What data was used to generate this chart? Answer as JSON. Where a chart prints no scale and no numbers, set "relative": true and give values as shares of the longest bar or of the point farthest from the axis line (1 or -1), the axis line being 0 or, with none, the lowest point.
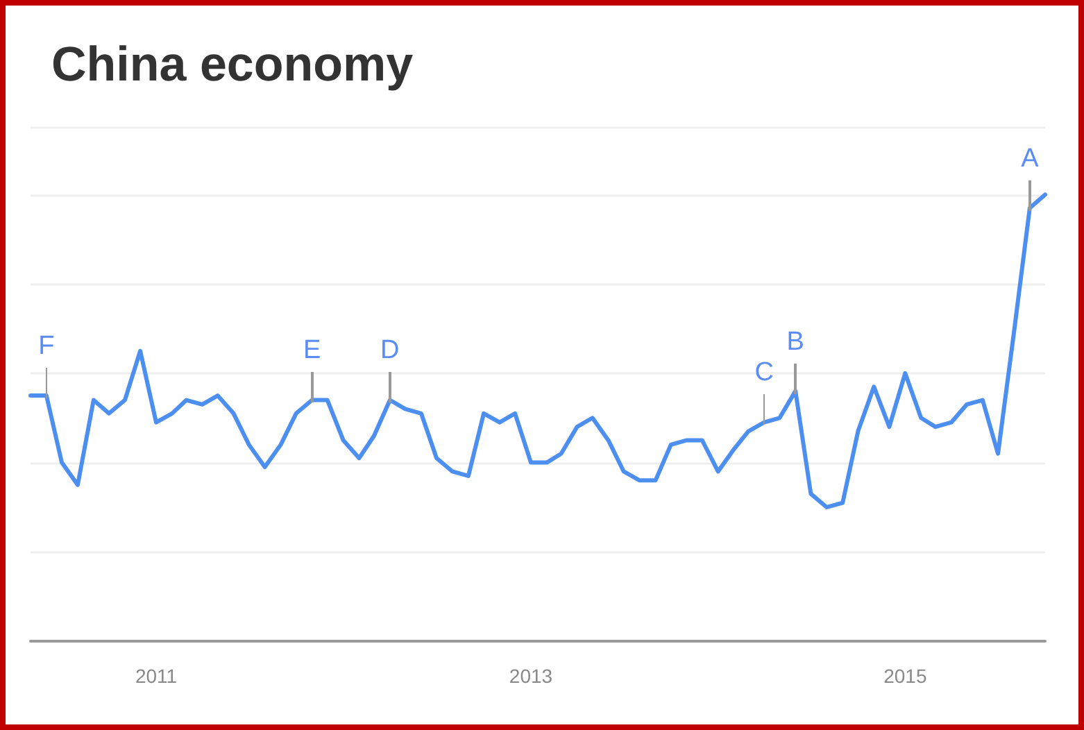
{
  "chart_data": {
    "type": "line",
    "title": "China economy",
    "relative": true,
    "grid": "y",
    "marker": "none",
    "line_style": "solid",
    "x": [
      "2010-05",
      "2010-06",
      "2010-07",
      "2010-08",
      "2010-09",
      "2010-10",
      "2010-11",
      "2010-12",
      "2011-01",
      "2011-02",
      "2011-03",
      "2011-04",
      "2011-05",
      "2011-06",
      "2011-07",
      "2011-08",
      "2011-09",
      "2011-10",
      "2011-11",
      "2011-12",
      "2012-01",
      "2012-02",
      "2012-03",
      "2012-04",
      "2012-05",
      "2012-06",
      "2012-07",
      "2012-08",
      "2012-09",
      "2012-10",
      "2012-11",
      "2012-12",
      "2013-01",
      "2013-02",
      "2013-03",
      "2013-04",
      "2013-05",
      "2013-06",
      "2013-07",
      "2013-08",
      "2013-09",
      "2013-10",
      "2013-11",
      "2013-12",
      "2014-01",
      "2014-02",
      "2014-03",
      "2014-04",
      "2014-05",
      "2014-06",
      "2014-07",
      "2014-08",
      "2014-09",
      "2014-10",
      "2014-11",
      "2014-12",
      "2015-01",
      "2015-02",
      "2015-03",
      "2015-04",
      "2015-05",
      "2015-06",
      "2015-07",
      "2015-08",
      "2015-09",
      "2015-10"
    ],
    "xlim": [
      "2010-05",
      "2015-10"
    ],
    "xticks": [
      "2011",
      "2013",
      "2015"
    ],
    "series": [
      {
        "color": "#4d8ff0",
        "values": [
          0.55,
          0.55,
          0.4,
          0.35,
          0.54,
          0.51,
          0.54,
          0.65,
          0.49,
          0.51,
          0.54,
          0.53,
          0.55,
          0.51,
          0.44,
          0.39,
          0.44,
          0.51,
          0.54,
          0.54,
          0.45,
          0.41,
          0.46,
          0.54,
          0.52,
          0.51,
          0.41,
          0.38,
          0.37,
          0.51,
          0.49,
          0.51,
          0.4,
          0.4,
          0.42,
          0.48,
          0.5,
          0.45,
          0.38,
          0.36,
          0.36,
          0.44,
          0.45,
          0.45,
          0.38,
          0.43,
          0.47,
          0.49,
          0.5,
          0.56,
          0.33,
          0.3,
          0.31,
          0.47,
          0.57,
          0.48,
          0.6,
          0.5,
          0.48,
          0.49,
          0.53,
          0.54,
          0.42,
          0.69,
          0.97,
          1.0
        ]
      }
    ],
    "annotations": [
      {
        "text": "F",
        "x": "2010-06",
        "y": 0.55
      },
      {
        "text": "E",
        "x": "2011-11",
        "y": 0.54
      },
      {
        "text": "D",
        "x": "2012-04",
        "y": 0.54
      },
      {
        "text": "C",
        "x": "2014-04",
        "y": 0.49
      },
      {
        "text": "B",
        "x": "2014-06",
        "y": 0.56
      },
      {
        "text": "A",
        "x": "2015-09",
        "y": 0.97
      }
    ]
  }
}
